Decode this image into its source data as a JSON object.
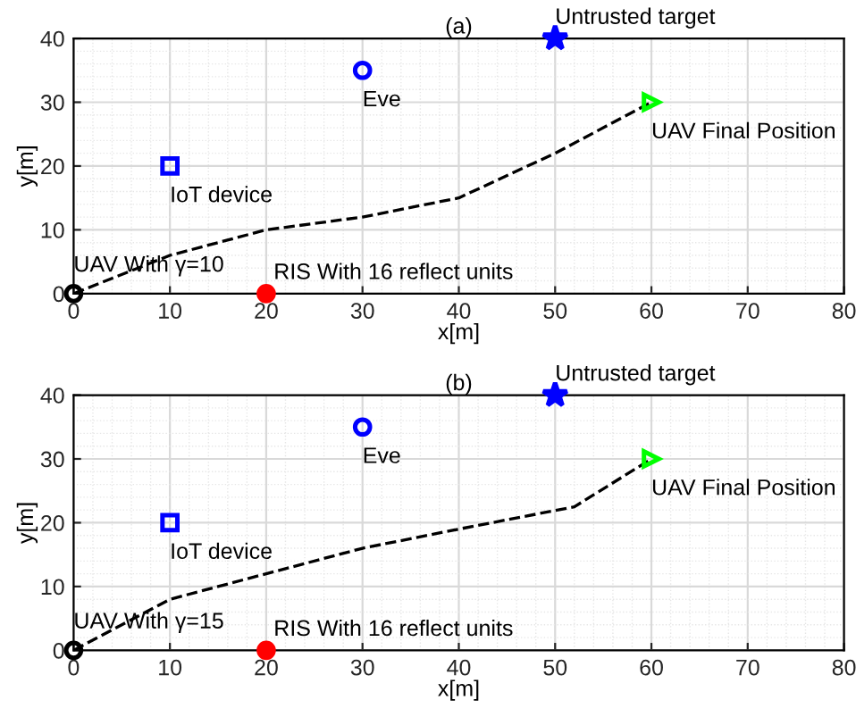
{
  "chart_data": [
    {
      "type": "scatter",
      "title": "(a)",
      "xlabel": "x[m]",
      "ylabel": "y[m]",
      "xlim": [
        0,
        80
      ],
      "ylim": [
        0,
        40
      ],
      "xticks": [
        0,
        10,
        20,
        30,
        40,
        50,
        60,
        70,
        80
      ],
      "yticks": [
        0,
        10,
        20,
        30,
        40
      ],
      "grid": true,
      "legend": false,
      "series": [
        {
          "type": "line",
          "line_style": "dashed",
          "marker": "none",
          "color": "#000000",
          "x": [
            0,
            10,
            20,
            30,
            40,
            50,
            60
          ],
          "values": [
            0,
            6,
            10,
            12,
            15,
            22,
            30
          ]
        },
        {
          "marker": "circle",
          "color": "#000000",
          "x": [
            0
          ],
          "values": [
            0
          ]
        },
        {
          "marker": "circle",
          "color": "#ff0000",
          "x": [
            20
          ],
          "values": [
            0
          ]
        },
        {
          "marker": "square",
          "color": "#0000ff",
          "x": [
            10
          ],
          "values": [
            20
          ]
        },
        {
          "marker": "circle",
          "color": "#0000ff",
          "x": [
            30
          ],
          "values": [
            35
          ]
        },
        {
          "marker": "star",
          "color": "#0000ff",
          "x": [
            50
          ],
          "values": [
            40
          ]
        },
        {
          "marker": "triangle",
          "color": "#00ff00",
          "x": [
            60
          ],
          "values": [
            30
          ]
        }
      ],
      "annotations": [
        {
          "text": "UAV With γ=10",
          "x": 0,
          "y": 0
        },
        {
          "text": "RIS With 16 reflect units",
          "x": 20,
          "y": 0
        },
        {
          "text": "IoT device",
          "x": 10,
          "y": 20
        },
        {
          "text": "Eve",
          "x": 30,
          "y": 35
        },
        {
          "text": "Untrusted target",
          "x": 50,
          "y": 40
        },
        {
          "text": "UAV Final Position",
          "x": 60,
          "y": 30
        }
      ]
    },
    {
      "type": "scatter",
      "title": "(b)",
      "xlabel": "x[m]",
      "ylabel": "y[m]",
      "xlim": [
        0,
        80
      ],
      "ylim": [
        0,
        40
      ],
      "xticks": [
        0,
        10,
        20,
        30,
        40,
        50,
        60,
        70,
        80
      ],
      "yticks": [
        0,
        10,
        20,
        30,
        40
      ],
      "grid": true,
      "legend": false,
      "series": [
        {
          "type": "line",
          "line_style": "dashed",
          "marker": "none",
          "color": "#000000",
          "x": [
            0,
            10,
            20,
            30,
            40,
            52,
            60
          ],
          "values": [
            0,
            8,
            12,
            16,
            19,
            22.5,
            30
          ]
        },
        {
          "marker": "circle",
          "color": "#000000",
          "x": [
            0
          ],
          "values": [
            0
          ]
        },
        {
          "marker": "circle",
          "color": "#ff0000",
          "x": [
            20
          ],
          "values": [
            0
          ]
        },
        {
          "marker": "square",
          "color": "#0000ff",
          "x": [
            10
          ],
          "values": [
            20
          ]
        },
        {
          "marker": "circle",
          "color": "#0000ff",
          "x": [
            30
          ],
          "values": [
            35
          ]
        },
        {
          "marker": "star",
          "color": "#0000ff",
          "x": [
            50
          ],
          "values": [
            40
          ]
        },
        {
          "marker": "triangle",
          "color": "#00ff00",
          "x": [
            60
          ],
          "values": [
            30
          ]
        }
      ],
      "annotations": [
        {
          "text": "UAV With γ=15",
          "x": 0,
          "y": 0
        },
        {
          "text": "RIS With 16 reflect units",
          "x": 20,
          "y": 0
        },
        {
          "text": "IoT device",
          "x": 10,
          "y": 20
        },
        {
          "text": "Eve",
          "x": 30,
          "y": 35
        },
        {
          "text": "Untrusted target",
          "x": 50,
          "y": 40
        },
        {
          "text": "UAV Final Position",
          "x": 60,
          "y": 30
        }
      ]
    }
  ]
}
